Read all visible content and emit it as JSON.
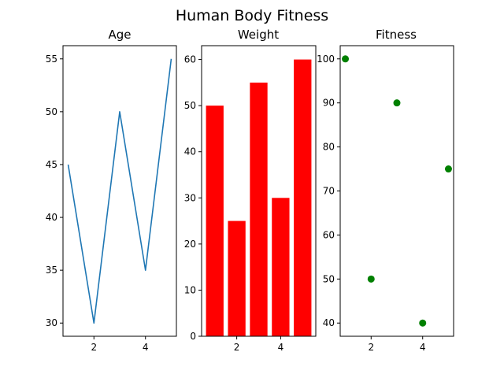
{
  "figure": {
    "title": "Human Body Fitness"
  },
  "chart_data": [
    {
      "type": "line",
      "title": "Age",
      "x": [
        1,
        2,
        3,
        4,
        5
      ],
      "y": [
        45,
        30,
        50,
        35,
        55
      ],
      "color": "#1f77b4",
      "xlim": [
        0.8,
        5.2
      ],
      "ylim": [
        28.75,
        56.25
      ],
      "xticks": [
        2,
        4
      ],
      "yticks": [
        30,
        35,
        40,
        45,
        50,
        55
      ],
      "grid": false
    },
    {
      "type": "bar",
      "title": "Weight",
      "x": [
        1,
        2,
        3,
        4,
        5
      ],
      "values": [
        50,
        25,
        55,
        30,
        60
      ],
      "color": "#ff0000",
      "xlim": [
        0.4,
        5.6
      ],
      "ylim": [
        0,
        63
      ],
      "xticks": [
        2,
        4
      ],
      "yticks": [
        0,
        10,
        20,
        30,
        40,
        50,
        60
      ],
      "grid": false
    },
    {
      "type": "scatter",
      "title": "Fitness",
      "x": [
        1,
        2,
        3,
        4,
        5
      ],
      "y": [
        100,
        50,
        90,
        40,
        75
      ],
      "color": "#008000",
      "xlim": [
        0.8,
        5.2
      ],
      "ylim": [
        37,
        103
      ],
      "xticks": [
        2,
        4
      ],
      "yticks": [
        40,
        50,
        60,
        70,
        80,
        90,
        100
      ],
      "grid": false
    }
  ]
}
